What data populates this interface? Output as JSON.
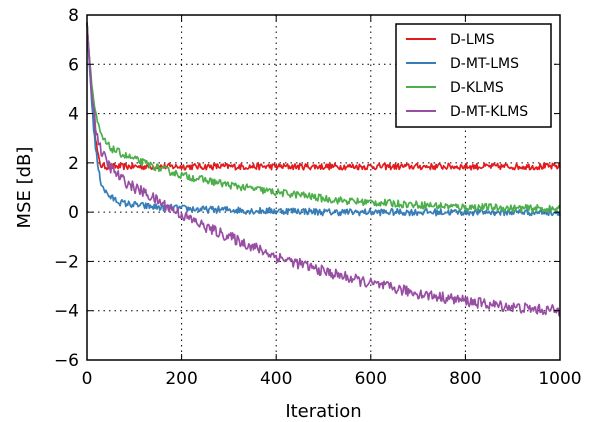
{
  "chart_data": {
    "type": "line",
    "title": "",
    "xlabel": "Iteration",
    "ylabel": "MSE [dB]",
    "xlim": [
      0,
      1000
    ],
    "ylim": [
      -6,
      8
    ],
    "xticks": [
      0,
      200,
      400,
      600,
      800,
      1000
    ],
    "yticks": [
      -6,
      -4,
      -2,
      0,
      2,
      4,
      6,
      8
    ],
    "xtick_labels": [
      "0",
      "200",
      "400",
      "600",
      "800",
      "1000"
    ],
    "ytick_labels": [
      "−6",
      "−4",
      "−2",
      "0",
      "2",
      "4",
      "6",
      "8"
    ],
    "grid": true,
    "legend_position": "top-right",
    "x": [
      0,
      5,
      10,
      15,
      20,
      25,
      30,
      40,
      50,
      60,
      70,
      80,
      100,
      120,
      150,
      200,
      250,
      300,
      350,
      400,
      450,
      500,
      550,
      600,
      650,
      700,
      750,
      800,
      850,
      900,
      950,
      1000
    ],
    "series": [
      {
        "name": "D-LMS",
        "color": "#e41a1c",
        "values": [
          7.7,
          6.2,
          4.8,
          3.6,
          2.7,
          2.1,
          1.9,
          1.85,
          1.85,
          1.85,
          1.85,
          1.85,
          1.85,
          1.85,
          1.85,
          1.85,
          1.85,
          1.85,
          1.85,
          1.85,
          1.85,
          1.85,
          1.85,
          1.85,
          1.85,
          1.85,
          1.85,
          1.85,
          1.85,
          1.85,
          1.85,
          1.85
        ]
      },
      {
        "name": "D-MT-LMS",
        "color": "#377eb8",
        "values": [
          7.7,
          6.0,
          4.5,
          3.2,
          2.3,
          1.6,
          1.2,
          0.8,
          0.6,
          0.5,
          0.4,
          0.35,
          0.3,
          0.25,
          0.2,
          0.15,
          0.1,
          0.1,
          0.05,
          0.05,
          0.05,
          0.0,
          0.0,
          0.0,
          0.0,
          0.0,
          0.0,
          0.0,
          0.0,
          0.0,
          0.0,
          0.0
        ]
      },
      {
        "name": "D-KLMS",
        "color": "#4daf4a",
        "values": [
          7.7,
          6.3,
          5.2,
          4.4,
          3.8,
          3.4,
          3.1,
          2.8,
          2.6,
          2.5,
          2.4,
          2.3,
          2.15,
          2.0,
          1.8,
          1.5,
          1.3,
          1.1,
          0.95,
          0.8,
          0.7,
          0.55,
          0.45,
          0.4,
          0.35,
          0.3,
          0.25,
          0.2,
          0.2,
          0.15,
          0.15,
          0.1
        ]
      },
      {
        "name": "D-MT-KLMS",
        "color": "#984ea3",
        "values": [
          7.7,
          6.2,
          5.0,
          4.0,
          3.3,
          2.8,
          2.5,
          2.1,
          1.8,
          1.6,
          1.4,
          1.25,
          1.0,
          0.8,
          0.45,
          -0.1,
          -0.6,
          -1.0,
          -1.4,
          -1.8,
          -2.1,
          -2.4,
          -2.65,
          -2.9,
          -3.1,
          -3.3,
          -3.45,
          -3.6,
          -3.75,
          -3.85,
          -3.95,
          -4.0
        ]
      }
    ]
  }
}
